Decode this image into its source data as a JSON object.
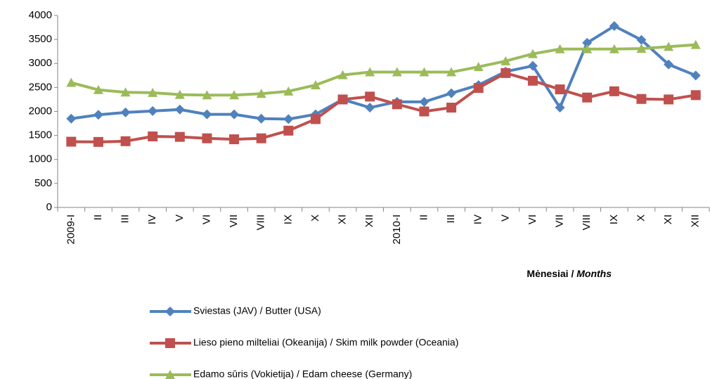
{
  "chart_data": {
    "type": "line",
    "categories": [
      "2009-I",
      "II",
      "III",
      "IV",
      "V",
      "VI",
      "VII",
      "VIII",
      "IX",
      "X",
      "XI",
      "XII",
      "2010-I",
      "II",
      "III",
      "IV",
      "V",
      "VI",
      "VII",
      "VIII",
      "IX",
      "X",
      "XI",
      "XII"
    ],
    "series": [
      {
        "name": "Sviestas (JAV) / Butter (USA)",
        "color": "#4f81bd",
        "marker": "diamond",
        "values": [
          1850,
          1930,
          1980,
          2010,
          2040,
          1940,
          1940,
          1850,
          1840,
          1940,
          2250,
          2080,
          2200,
          2200,
          2380,
          2550,
          2830,
          2950,
          2080,
          3430,
          3780,
          3490,
          2980,
          2750
        ]
      },
      {
        "name": "Lieso pieno milteliai (Okeanija) / Skim milk powder (Oceania)",
        "color": "#c0504d",
        "marker": "square",
        "values": [
          1370,
          1365,
          1380,
          1480,
          1470,
          1440,
          1420,
          1440,
          1600,
          1840,
          2250,
          2310,
          2150,
          2000,
          2080,
          2490,
          2800,
          2640,
          2460,
          2290,
          2420,
          2260,
          2250,
          2340
        ]
      },
      {
        "name": "Edamo sūris (Vokietija) / Edam cheese (Germany)",
        "color": "#9bbb59",
        "marker": "triangle",
        "values": [
          2600,
          2450,
          2400,
          2390,
          2350,
          2340,
          2340,
          2370,
          2420,
          2550,
          2760,
          2820,
          2820,
          2820,
          2820,
          2930,
          3050,
          3200,
          3300,
          3300,
          3300,
          3310,
          3350,
          3390
        ]
      }
    ],
    "xlabel": {
      "text": "Mėnesiai /",
      "emphasis": "Months"
    },
    "ylim": [
      0,
      4000
    ],
    "yticks": [
      0,
      500,
      1000,
      1500,
      2000,
      2500,
      3000,
      3500,
      4000
    ],
    "grid": false,
    "legend": "bottom"
  }
}
